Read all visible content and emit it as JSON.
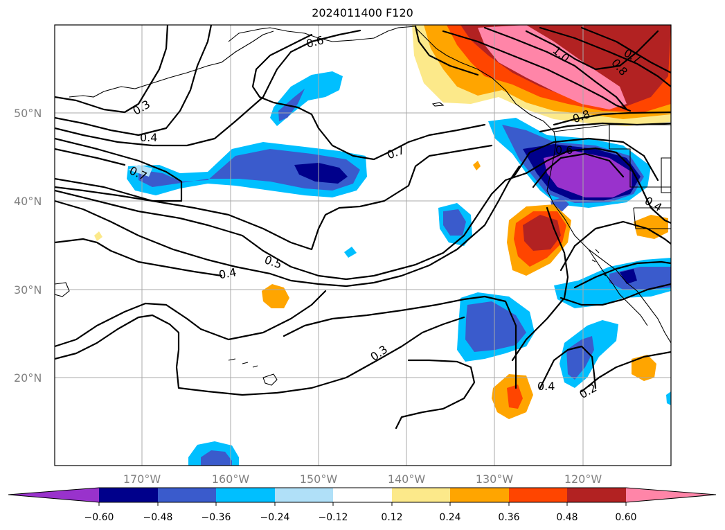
{
  "title": "2024011400 F120",
  "map": {
    "lat_labels": [
      "50°N",
      "40°N",
      "30°N",
      "20°N"
    ],
    "lon_labels": [
      "170°W",
      "160°W",
      "150°W",
      "140°W",
      "130°W",
      "120°W"
    ],
    "contour_labels": [
      "0.3",
      "0.4",
      "0.6",
      "0.7",
      "0.7",
      "0.5",
      "0.4",
      "0.3",
      "0.4",
      "0.2",
      "1.0",
      "0.8",
      "0.7",
      "0.8",
      "0.6",
      "0.4"
    ],
    "contour_color": "#000000",
    "grid_color": "#a8a8a8"
  },
  "colorbar": {
    "tick_labels": [
      "−0.60",
      "−0.48",
      "−0.36",
      "−0.24",
      "−0.12",
      "0.12",
      "0.24",
      "0.36",
      "0.48",
      "0.60"
    ],
    "colors": [
      "#9932cc",
      "#00008b",
      "#3a5bcc",
      "#00bfff",
      "#b0e0f8",
      "#ffffff",
      "#fce98a",
      "#ffa500",
      "#ff4500",
      "#b22222",
      "#ff85a8"
    ]
  }
}
